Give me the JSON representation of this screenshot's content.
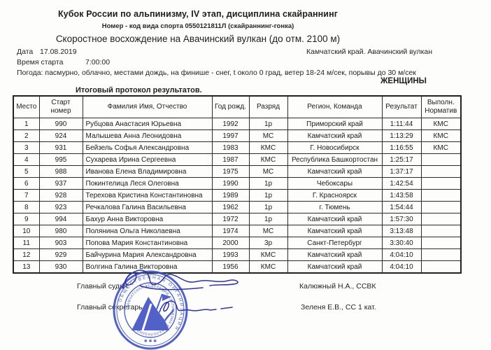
{
  "header": {
    "title": "Кубок России по альпинизму, IV этап, дисциплина скайраннинг",
    "code_line": "Номер - код вида спорта 0550121811Л (скайраннинг-гонка)",
    "subtitle": "Скоростное восхождение на Авачинский вулкан (до отм. 2100 м)"
  },
  "meta": {
    "date_label": "Дата",
    "date_value": "17.08.2019",
    "location": "Камчатский край. Авачинский вулкан",
    "start_label": "Время старта",
    "start_value": "7:00:00",
    "weather": "Погода: пасмурно, облачно, местами дождь, на финише - снег, t около 0 град, ветер 18-24 м/сек, порывы до 30 м/сек",
    "category": "ЖЕНЩИНЫ",
    "protocol_title": "Итоговый протокол результатов."
  },
  "table": {
    "headers": [
      "Место",
      "Старт номер",
      "Фамилия Имя, Отчество",
      "Год рожд.",
      "Разряд",
      "Регион, Команда",
      "Результат",
      "Выполн. Норматив"
    ],
    "rows": [
      [
        "1",
        "990",
        "Рубцова Анастасия Юрьевна",
        "1992",
        "1р",
        "Приморский край",
        "1:11:44",
        "КМС"
      ],
      [
        "2",
        "924",
        "Малышева Анна Леонидовна",
        "1997",
        "МС",
        "Камчатский край",
        "1:13:29",
        "КМС"
      ],
      [
        "3",
        "931",
        "Бейзель Софья Александровна",
        "1983",
        "КМС",
        "Г. Новосибирск",
        "1:16:55",
        "КМС"
      ],
      [
        "4",
        "995",
        "Сухарева Ирина Сергеевна",
        "1987",
        "КМС",
        "Республика Башкортостан",
        "1:25:17",
        ""
      ],
      [
        "5",
        "988",
        "Иванова Елена Владимировна",
        "1975",
        "МС",
        "Камчатский край",
        "1:37:17",
        ""
      ],
      [
        "6",
        "937",
        "Покинтелица Леся Олеговна",
        "1990",
        "1р",
        "Чебоксары",
        "1:42:54",
        ""
      ],
      [
        "7",
        "928",
        "Терехова Кристина Константиновна",
        "1989",
        "1р",
        "Г. Красноярск",
        "1:43:58",
        ""
      ],
      [
        "8",
        "923",
        "Речкалова Галина Васильевна",
        "1962",
        "1р",
        "г. Тюмень",
        "1:54:44",
        ""
      ],
      [
        "9",
        "994",
        "Бахур Анна Викторовна",
        "1972",
        "1р",
        "Камчатский край",
        "1:57:30",
        ""
      ],
      [
        "10",
        "980",
        "Полянина Ольга Николаевна",
        "1974",
        "МС",
        "Камчатский край",
        "3:13:48",
        ""
      ],
      [
        "11",
        "903",
        "Попова Мария Константиновна",
        "2000",
        "3р",
        "Санкт-Петербург",
        "3:30:40",
        ""
      ],
      [
        "12",
        "929",
        "Байчурина Мария Александровна",
        "1993",
        "КМС",
        "Камчатский край",
        "4:04:10",
        ""
      ],
      [
        "13",
        "930",
        "Волгина Галина Викторовна",
        "1956",
        "КМС",
        "Камчатский край",
        "4:04:10",
        ""
      ]
    ]
  },
  "footer": {
    "judge_label": "Главный судья",
    "judge_name": "Калюжный Н.А., ССВК",
    "secretary_label": "Главный секретарь",
    "secretary_name": "Зеленя Е.В., СС 1 кат."
  },
  "stamp": {
    "outer_text": "ОБЩЕСТВЕННАЯ ОРГАНИЗАЦИЯ",
    "inner_text": "«КАМЧАТСКАЯ ФЕДЕРАЦИЯ АЛЬПИНИЗМА И СКАЛОЛАЗАНИЯ»",
    "stars": "✱ ✱ ✱",
    "color": "#3a4cc0"
  },
  "colors": {
    "ink": "#1e1e1e",
    "stamp_blue": "#3a4cc0",
    "signature_blue": "#2c35a0"
  }
}
